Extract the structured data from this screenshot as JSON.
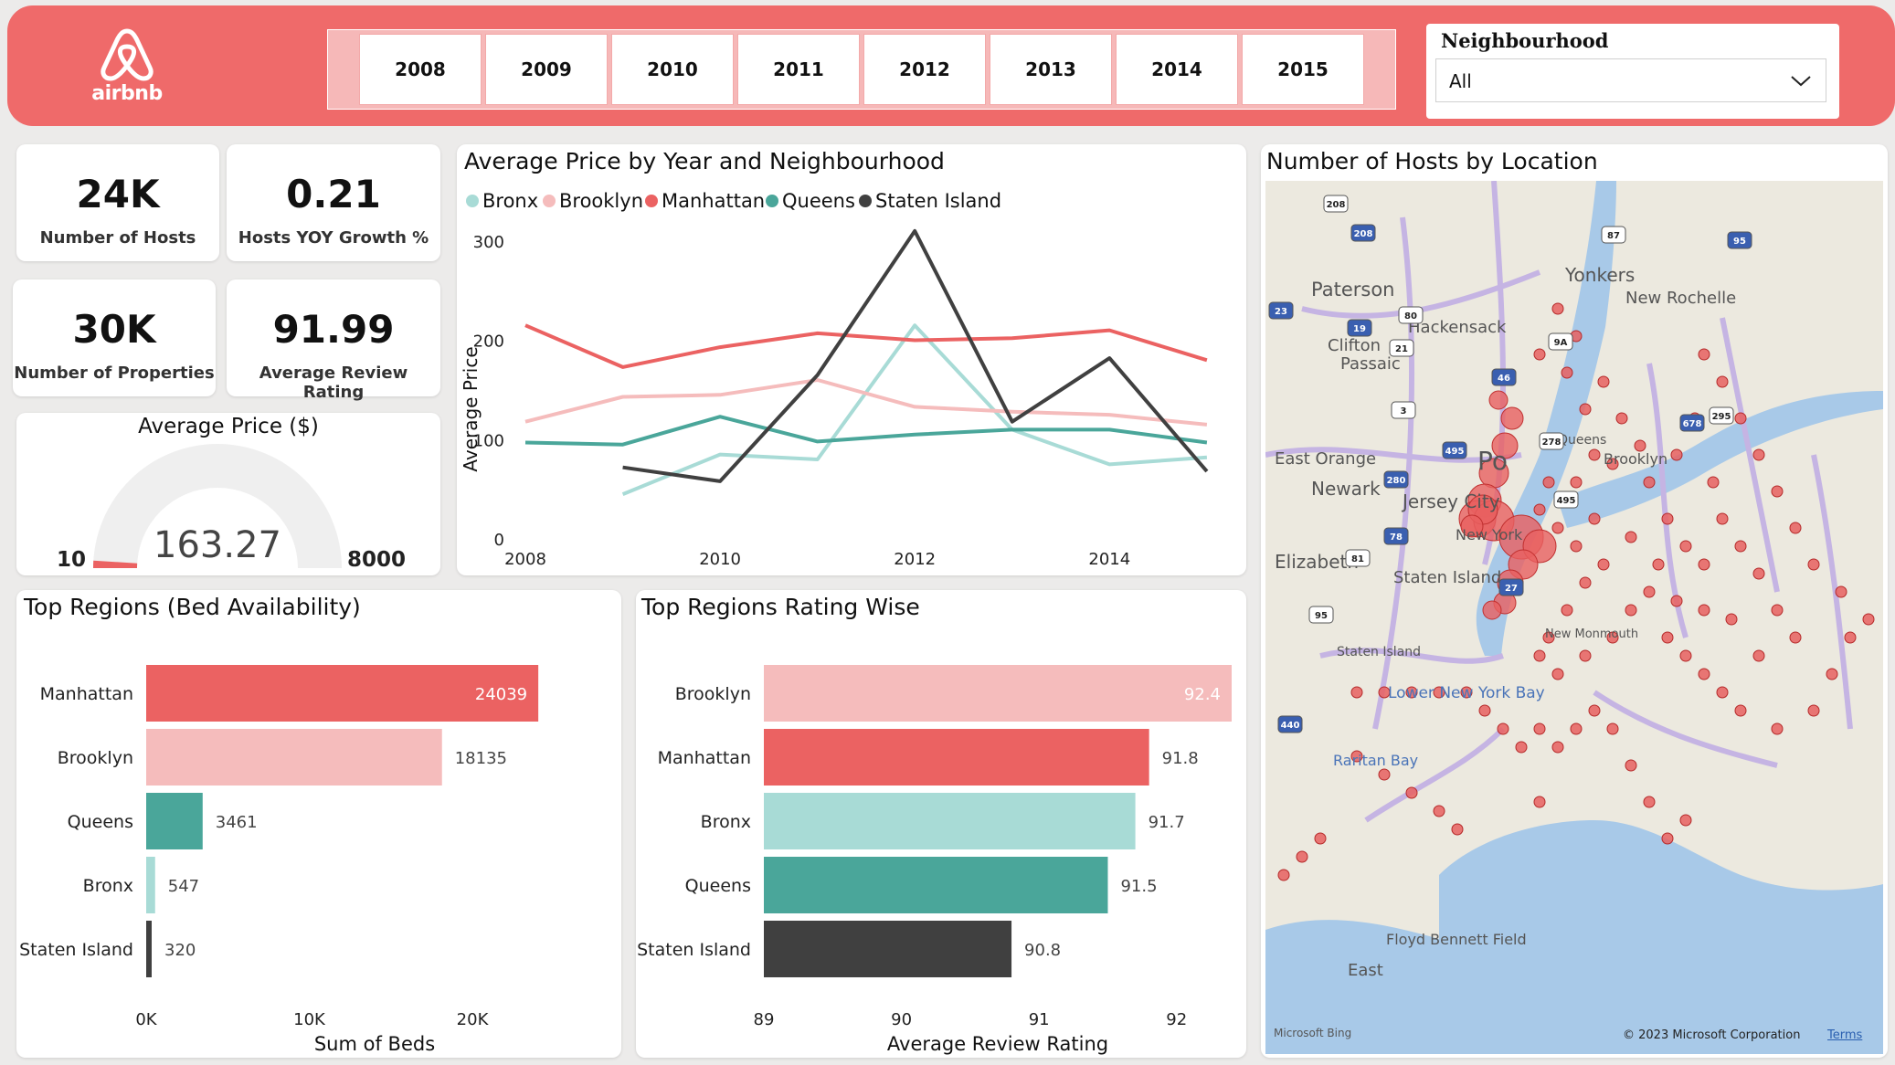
{
  "header": {
    "logo_text": "airbnb",
    "years": [
      "2008",
      "2009",
      "2010",
      "2011",
      "2012",
      "2013",
      "2014",
      "2015"
    ],
    "neighbourhood_label": "Neighbourhood",
    "neighbourhood_value": "All",
    "accent": "#ef6a6a"
  },
  "kpis": [
    {
      "value": "24K",
      "label": "Number of Hosts"
    },
    {
      "value": "0.21",
      "label": "Hosts YOY Growth %"
    },
    {
      "value": "30K",
      "label": "Number of Properties"
    },
    {
      "value": "91.99",
      "label": "Average Review Rating"
    }
  ],
  "gauge": {
    "title": "Average Price ($)",
    "value": "163.27",
    "min": "10",
    "max": "8000",
    "value_num": 163.27,
    "min_num": 10,
    "max_num": 8000
  },
  "colors": {
    "Bronx": "#a8dbd6",
    "Brooklyn": "#f5bcbc",
    "Manhattan": "#eb6262",
    "Queens": "#4aa69a",
    "Staten Island": "#404040"
  },
  "chart_data": [
    {
      "type": "line",
      "title": "Average Price by Year and Neighbourhood",
      "xlabel": "",
      "ylabel": "Average Price",
      "x": [
        2008,
        2009,
        2010,
        2011,
        2012,
        2013,
        2014,
        2015
      ],
      "x_ticks": [
        "2008",
        "2010",
        "2012",
        "2014"
      ],
      "y_ticks": [
        "0",
        "100",
        "200",
        "300"
      ],
      "ylim": [
        0,
        320
      ],
      "legend_position": "top-left",
      "series": [
        {
          "name": "Bronx",
          "values": [
            null,
            45,
            85,
            80,
            215,
            110,
            75,
            82
          ]
        },
        {
          "name": "Brooklyn",
          "values": [
            118,
            143,
            145,
            160,
            133,
            128,
            125,
            115
          ]
        },
        {
          "name": "Manhattan",
          "values": [
            215,
            173,
            193,
            207,
            200,
            202,
            210,
            180
          ]
        },
        {
          "name": "Queens",
          "values": [
            97,
            95,
            123,
            98,
            105,
            110,
            110,
            97
          ]
        },
        {
          "name": "Staten Island",
          "values": [
            null,
            72,
            58,
            165,
            310,
            118,
            182,
            68
          ]
        }
      ]
    },
    {
      "type": "bar",
      "title": "Top Regions (Bed Availability)",
      "xlabel": "Sum of Beds",
      "categories": [
        "Manhattan",
        "Brooklyn",
        "Queens",
        "Bronx",
        "Staten Island"
      ],
      "values": [
        24039,
        18135,
        3461,
        547,
        320
      ],
      "value_labels": [
        "24039",
        "18135",
        "3461",
        "547",
        "320"
      ],
      "x_ticks": [
        "0K",
        "10K",
        "20K"
      ],
      "xlim": [
        0,
        27000
      ]
    },
    {
      "type": "bar",
      "title": "Top Regions Rating Wise",
      "xlabel": "Average Review Rating",
      "categories": [
        "Brooklyn",
        "Manhattan",
        "Bronx",
        "Queens",
        "Staten Island"
      ],
      "values": [
        92.4,
        91.8,
        91.7,
        91.5,
        90.8
      ],
      "value_labels": [
        "92.4",
        "91.8",
        "91.7",
        "91.5",
        "90.8"
      ],
      "x_ticks": [
        "89",
        "90",
        "91",
        "92"
      ],
      "xlim": [
        89,
        92.4
      ]
    }
  ],
  "map": {
    "title": "Number of Hosts by Location",
    "place_labels": [
      "Yonkers",
      "New Rochelle",
      "Paterson",
      "Hackensack",
      "Clifton",
      "Passaic",
      "East Orange",
      "Newark",
      "Jersey City",
      "Elizabeth",
      "Staten Island",
      "Staten Island",
      "Lower New York Bay",
      "Raritan Bay",
      "Floyd Bennett Field",
      "New Monmouth",
      "East",
      "Queens",
      "Brooklyn",
      "New York",
      "Po"
    ],
    "shields": [
      "208",
      "208",
      "87",
      "95",
      "80",
      "19",
      "21",
      "46",
      "3",
      "495",
      "278",
      "678",
      "295",
      "280",
      "495",
      "78",
      "81",
      "27",
      "95",
      "440",
      "9A",
      "23"
    ],
    "provider": "Microsoft Bing",
    "copyright": "© 2023 Microsoft Corporation",
    "terms": "Terms"
  }
}
